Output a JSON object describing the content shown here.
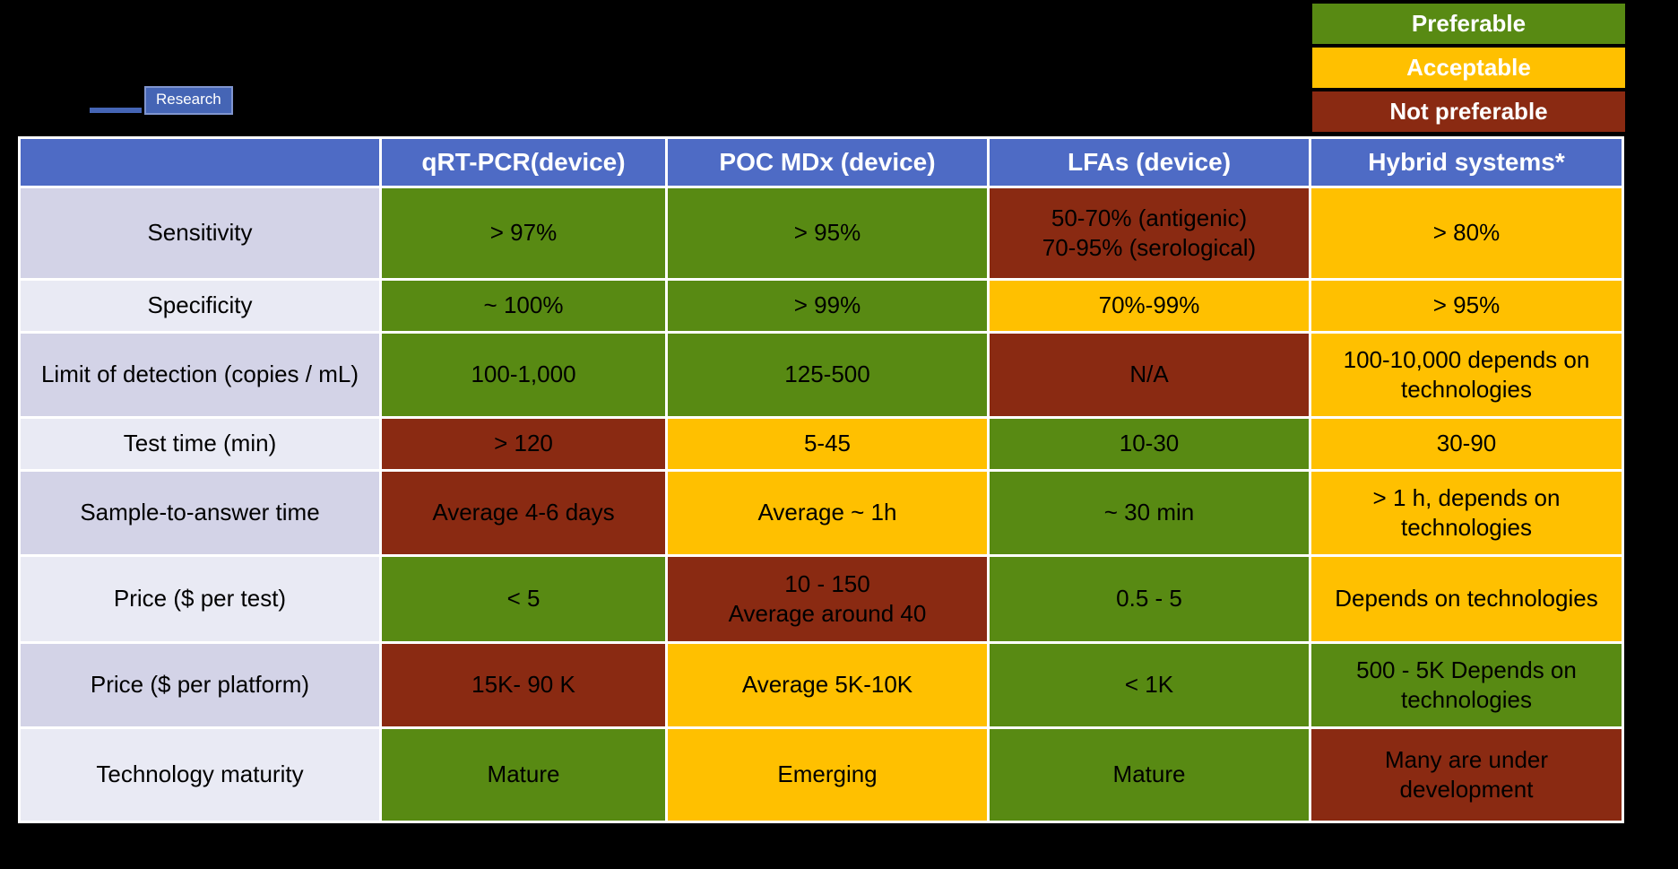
{
  "colors": {
    "background": "#000000",
    "header_blue": "#4E6BC5",
    "logo_blue": "#4565B5",
    "logo_border": "#8095CF",
    "grid_white": "#FFFFFF",
    "label_odd": "#D3D3E7",
    "label_even": "#E9EAF4",
    "preferable": "#588A13",
    "acceptable": "#FFC000",
    "not_preferable": "#8A2A12"
  },
  "logo": {
    "badge_text": "Research"
  },
  "legend": {
    "items": [
      {
        "label": "Preferable",
        "status": "preferable"
      },
      {
        "label": "Acceptable",
        "status": "acceptable"
      },
      {
        "label": "Not preferable",
        "status": "not_preferable"
      }
    ]
  },
  "chart_data": {
    "type": "table",
    "legend_position": "top-right",
    "legend": [
      "Preferable",
      "Acceptable",
      "Not preferable"
    ],
    "color_coding": {
      "preferable": "#588A13",
      "acceptable": "#FFC000",
      "not_preferable": "#8A2A12"
    },
    "columns": [
      "",
      "qRT-PCR(device)",
      "POC MDx (device)",
      "LFAs (device)",
      "Hybrid systems*"
    ],
    "rows": [
      {
        "label": "Sensitivity",
        "cells": [
          {
            "text": "> 97%",
            "status": "preferable"
          },
          {
            "text": "> 95%",
            "status": "preferable"
          },
          {
            "text": "50-70% (antigenic)\n70-95% (serological)",
            "status": "not_preferable"
          },
          {
            "text": "> 80%",
            "status": "acceptable"
          }
        ]
      },
      {
        "label": "Specificity",
        "cells": [
          {
            "text": "~ 100%",
            "status": "preferable"
          },
          {
            "text": "> 99%",
            "status": "preferable"
          },
          {
            "text": "70%-99%",
            "status": "acceptable"
          },
          {
            "text": "> 95%",
            "status": "acceptable"
          }
        ]
      },
      {
        "label": "Limit of detection (copies / mL)",
        "cells": [
          {
            "text": "100-1,000",
            "status": "preferable"
          },
          {
            "text": "125-500",
            "status": "preferable"
          },
          {
            "text": "N/A",
            "status": "not_preferable"
          },
          {
            "text": "100-10,000 depends on technologies",
            "status": "acceptable"
          }
        ]
      },
      {
        "label": "Test time (min)",
        "cells": [
          {
            "text": "> 120",
            "status": "not_preferable"
          },
          {
            "text": "5-45",
            "status": "acceptable"
          },
          {
            "text": "10-30",
            "status": "preferable"
          },
          {
            "text": "30-90",
            "status": "acceptable"
          }
        ]
      },
      {
        "label": "Sample-to-answer time",
        "cells": [
          {
            "text": "Average 4-6 days",
            "status": "not_preferable"
          },
          {
            "text": "Average ~ 1h",
            "status": "acceptable"
          },
          {
            "text": "~ 30 min",
            "status": "preferable"
          },
          {
            "text": "> 1 h, depends on technologies",
            "status": "acceptable"
          }
        ]
      },
      {
        "label": "Price ($ per test)",
        "cells": [
          {
            "text": "< 5",
            "status": "preferable"
          },
          {
            "text": "10 - 150\nAverage around 40",
            "status": "not_preferable"
          },
          {
            "text": "0.5 - 5",
            "status": "preferable"
          },
          {
            "text": "Depends on technologies",
            "status": "acceptable"
          }
        ]
      },
      {
        "label": "Price ($ per platform)",
        "cells": [
          {
            "text": "15K- 90 K",
            "status": "not_preferable"
          },
          {
            "text": "Average 5K-10K",
            "status": "acceptable"
          },
          {
            "text": "< 1K",
            "status": "preferable"
          },
          {
            "text": "500 - 5K Depends on technologies",
            "status": "preferable"
          }
        ]
      },
      {
        "label": "Technology maturity",
        "cells": [
          {
            "text": "Mature",
            "status": "preferable"
          },
          {
            "text": "Emerging",
            "status": "acceptable"
          },
          {
            "text": "Mature",
            "status": "preferable"
          },
          {
            "text": "Many are under development",
            "status": "not_preferable"
          }
        ]
      }
    ]
  }
}
